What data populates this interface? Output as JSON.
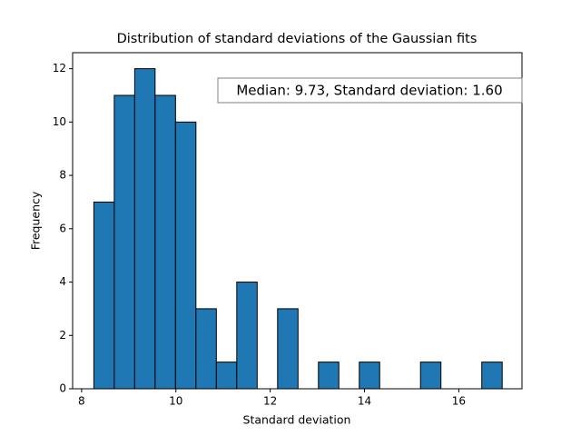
{
  "chart_data": {
    "type": "histogram",
    "title": "Distribution of standard deviations of the Gaussian fits",
    "x_label": "Standard deviation",
    "y_label": "Frequency",
    "annotation": "Median: 9.73, Standard deviation: 1.60",
    "bins": [
      8.26,
      8.693,
      9.126,
      9.559,
      9.992,
      10.425,
      10.858,
      11.291,
      11.724,
      12.157,
      12.59,
      13.023,
      13.456,
      13.889,
      14.322,
      14.755,
      15.188,
      15.621,
      16.054,
      16.487,
      16.92
    ],
    "counts": [
      7,
      11,
      12,
      11,
      10,
      3,
      1,
      4,
      0,
      3,
      0,
      1,
      0,
      1,
      0,
      0,
      1,
      0,
      0,
      1
    ],
    "color": "#1f77b4",
    "edgecolor": "#000000",
    "xlim": [
      7.81,
      17.34
    ],
    "xticks": [
      8,
      10,
      12,
      14,
      16
    ],
    "ylim": [
      0,
      12.6
    ],
    "yticks": [
      0,
      2,
      4,
      6,
      8,
      10,
      12
    ]
  }
}
